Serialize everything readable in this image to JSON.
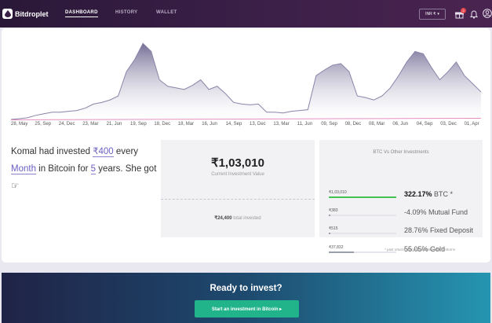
{
  "nav": {
    "brand": "Bitdroplet",
    "links": [
      "DASHBOARD",
      "HISTORY",
      "WALLET"
    ],
    "currency": "INR ₹",
    "notification_count": "2"
  },
  "chart_data": {
    "type": "area",
    "title": "",
    "x_ticks": [
      "28, May",
      "25, Sep",
      "24, Dec",
      "23, Mar",
      "21, Jun",
      "19, Sep",
      "18, Dec",
      "18, Mar",
      "16, Jun",
      "14, Sep",
      "13, Dec",
      "13, Mar",
      "11, Jun",
      "09, Sep",
      "08, Dec",
      "08, Mar",
      "06, Jun",
      "04, Sep",
      "03, Dec",
      "01, Apr"
    ],
    "series": [
      {
        "values": [
          0.01,
          0.02,
          0.03,
          0.06,
          0.08,
          0.1,
          0.1,
          0.11,
          0.12,
          0.15,
          0.2,
          0.22,
          0.25,
          0.3,
          0.6,
          0.75,
          0.95,
          0.85,
          0.5,
          0.42,
          0.4,
          0.38,
          0.43,
          0.5,
          0.38,
          0.42,
          0.33,
          0.22,
          0.2,
          0.19,
          0.2,
          0.1,
          0.1,
          0.09,
          0.11,
          0.12,
          0.13,
          0.55,
          0.62,
          0.68,
          0.7,
          0.6,
          0.3,
          0.28,
          0.25,
          0.3,
          0.4,
          0.55,
          0.72,
          0.85,
          0.82,
          0.65,
          0.5,
          0.6,
          0.72,
          0.55,
          0.45,
          0.35
        ]
      },
      {
        "values": [
          0.0,
          0.02,
          0.04,
          0.06,
          0.08,
          0.1,
          0.12,
          0.14,
          0.16,
          0.18,
          0.2
        ]
      }
    ],
    "colors": [
      "#8a84a8",
      "#e48fc0"
    ],
    "grid": false,
    "legend": "none"
  },
  "summary": {
    "t1": "Komal had invested ",
    "amount": "₹400",
    "t2": " every",
    "freq": "Month",
    "t3": " in Bitcoin for ",
    "years": "5",
    "t4": " years. She got ",
    "emoji": "☞"
  },
  "result": {
    "value": "₹1,03,010",
    "caption": "Current Investment Value",
    "invested_amount": "₹24,400",
    "invested_label": " total invested"
  },
  "comparison": {
    "title": "BTC Vs Other Investments",
    "rows": [
      {
        "amount": "₹1,03,010",
        "pct": "322.17%",
        "name": " BTC *",
        "fill": 1.0,
        "color": "#43c24f"
      },
      {
        "amount": "₹383",
        "pct": "-4.09%",
        "name": " Mutual Fund",
        "fill": 0.004,
        "color": "#9aa0aa"
      },
      {
        "amount": "₹515",
        "pct": "28.76%",
        "name": " Fixed Deposit",
        "fill": 0.005,
        "color": "#9aa0aa"
      },
      {
        "amount": "₹37,832",
        "pct": "55.05%",
        "name": " Gold",
        "fill": 0.37,
        "color": "#9aa0aa"
      }
    ],
    "disclaimer": "* past returns do not guarantee future returns"
  },
  "cta": {
    "title": "Ready to invest?",
    "button": "Start an investment in Bitcoin ▸"
  },
  "colors": {
    "nav": "#3a1f47",
    "accent": "#21b38a",
    "btc_bar": "#43c24f"
  }
}
